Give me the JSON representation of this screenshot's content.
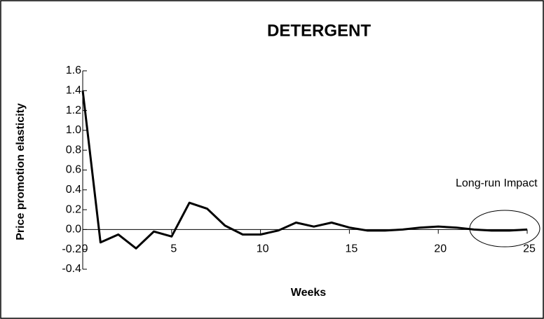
{
  "chart_data": {
    "type": "line",
    "title": "DETERGENT",
    "x_label": "Weeks",
    "y_label": "Price promotion elasticity",
    "x": [
      0,
      1,
      2,
      3,
      4,
      5,
      6,
      7,
      8,
      9,
      10,
      11,
      12,
      13,
      14,
      15,
      16,
      17,
      18,
      19,
      20,
      21,
      22,
      23,
      24,
      25
    ],
    "series": [
      {
        "name": "Detergent",
        "color": "#000000",
        "values": [
          1.4,
          -0.13,
          -0.05,
          -0.19,
          -0.02,
          -0.07,
          0.27,
          0.21,
          0.04,
          -0.05,
          -0.05,
          -0.01,
          0.07,
          0.03,
          0.07,
          0.02,
          -0.01,
          -0.01,
          0.0,
          0.02,
          0.03,
          0.02,
          0.0,
          -0.01,
          -0.01,
          0.0
        ]
      }
    ],
    "xlim": [
      0,
      25
    ],
    "xticks": [
      0,
      5,
      10,
      15,
      20,
      25
    ],
    "ylim": [
      -0.4,
      1.6
    ],
    "yticks": [
      -0.4,
      -0.2,
      {
        "value": 0,
        "label": "0.0"
      },
      0.2,
      0.4,
      0.6,
      0.8,
      {
        "value": 1,
        "label": "1.0"
      },
      1.2,
      1.4,
      1.6
    ],
    "annotation": "Long-run Impact",
    "grid": false
  }
}
